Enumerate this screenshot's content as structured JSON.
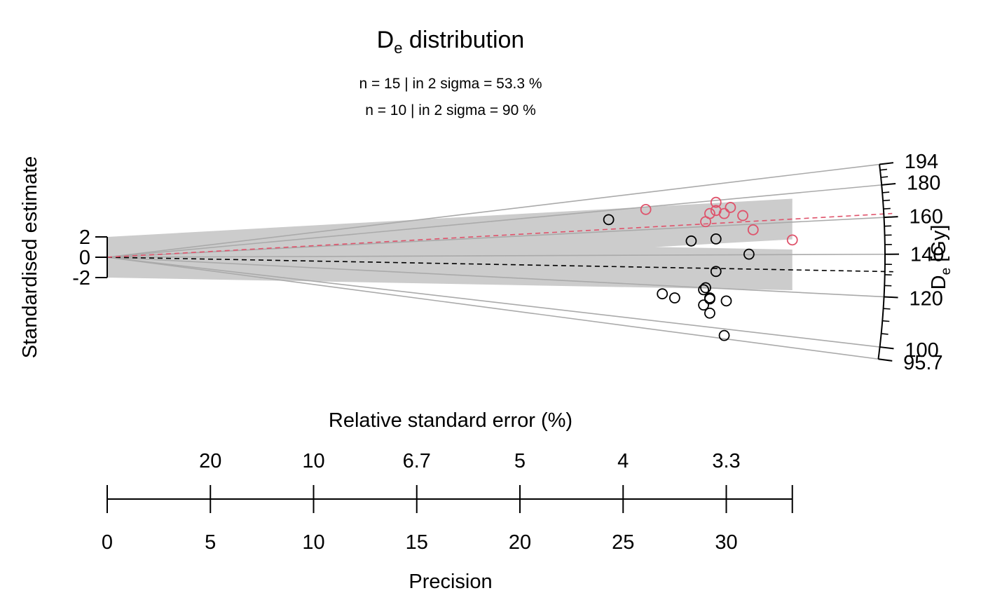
{
  "title_main": "D",
  "title_sub": "e",
  "title_rest": " distribution",
  "stats": [
    {
      "text": "n = 15 | in 2 sigma = 53.3 %",
      "color": "#000000"
    },
    {
      "text": "n = 10 | in 2 sigma = 90 %",
      "color": "#DF536B"
    }
  ],
  "y_axis_label": "Standardised estimate",
  "z_axis_label_main": "D",
  "z_axis_label_sub": "e",
  "z_axis_label_rest": " [Gy]",
  "rse_axis_label": "Relative standard error (%)",
  "precision_axis_label": "Precision",
  "colors": {
    "group1": "#000000",
    "group2": "#DF536B",
    "band": "#CCCCCC",
    "ref_lines": "#AAAAAA"
  },
  "chart_data": {
    "type": "scatter",
    "subtype": "radial-plot",
    "title": "De distribution",
    "xlabel": "Precision",
    "x2label": "Relative standard error (%)",
    "ylabel": "Standardised estimate",
    "zlabel": "De [Gy]",
    "xlim": [
      0,
      33.2
    ],
    "x_ticks": [
      0,
      5,
      10,
      15,
      20,
      25,
      30
    ],
    "x_tick_labels": [
      "0",
      "5",
      "10",
      "15",
      "20",
      "25",
      "30"
    ],
    "rse_ticks": [
      5,
      10,
      15,
      20,
      25,
      30
    ],
    "rse_tick_labels": [
      "20",
      "10",
      "6.7",
      "5",
      "4",
      "3.3"
    ],
    "y_ticks": [
      2,
      0,
      -2
    ],
    "y_tick_labels": [
      "2",
      "0",
      "-2"
    ],
    "z_range": [
      95.7,
      194
    ],
    "z_ticks_major": [
      95.7,
      100,
      120,
      140,
      160,
      180,
      194
    ],
    "z_tick_labels": [
      "95.7",
      "100",
      "120",
      "140",
      "160",
      "180",
      "194"
    ],
    "z_ticks_minor": [
      105,
      110,
      115,
      125,
      130,
      135,
      145,
      150,
      155,
      165,
      170,
      175,
      185,
      190
    ],
    "reference_lines_de": [
      95.7,
      100,
      120,
      140,
      160,
      180,
      194
    ],
    "series": [
      {
        "name": "group 1",
        "color": "#000000",
        "central_value_de": 131.5,
        "points": [
          {
            "precision": 24.3,
            "y": 3.7
          },
          {
            "precision": 28.3,
            "y": 1.6
          },
          {
            "precision": 29.5,
            "y": 1.8
          },
          {
            "precision": 31.1,
            "y": 0.3
          },
          {
            "precision": 29.5,
            "y": -1.4
          },
          {
            "precision": 28.9,
            "y": -3.2
          },
          {
            "precision": 29.0,
            "y": -3.0
          },
          {
            "precision": 26.9,
            "y": -3.6
          },
          {
            "precision": 27.5,
            "y": -4.0
          },
          {
            "precision": 29.2,
            "y": -4.0
          },
          {
            "precision": 29.2,
            "y": -4.1
          },
          {
            "precision": 30.0,
            "y": -4.3
          },
          {
            "precision": 28.9,
            "y": -4.7
          },
          {
            "precision": 29.2,
            "y": -5.5
          },
          {
            "precision": 29.9,
            "y": -7.7
          }
        ]
      },
      {
        "name": "group 2",
        "color": "#DF536B",
        "central_value_de": 162,
        "points": [
          {
            "precision": 26.1,
            "y": 4.7
          },
          {
            "precision": 29.5,
            "y": 5.4
          },
          {
            "precision": 30.2,
            "y": 4.9
          },
          {
            "precision": 29.5,
            "y": 4.6
          },
          {
            "precision": 29.2,
            "y": 4.3
          },
          {
            "precision": 29.9,
            "y": 4.3
          },
          {
            "precision": 30.8,
            "y": 4.1
          },
          {
            "precision": 29.0,
            "y": 3.5
          },
          {
            "precision": 31.3,
            "y": 2.7
          },
          {
            "precision": 33.2,
            "y": 1.7
          }
        ]
      }
    ]
  }
}
